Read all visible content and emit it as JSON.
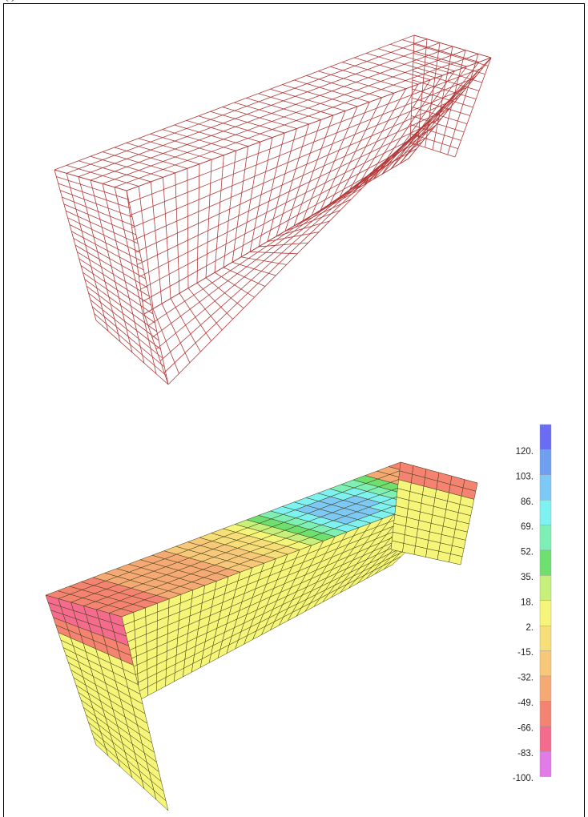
{
  "caption_fragment": "(                                                             )",
  "colors": {
    "mesh_line": "#b03a3a",
    "contour_edge": "#3a3a10"
  },
  "legend": {
    "labels": [
      "120.",
      "103.",
      "86.",
      "69.",
      "52.",
      "35.",
      "18.",
      "2.",
      "-15.",
      "-32.",
      "-49.",
      "-66.",
      "-83.",
      "-100."
    ],
    "bands": [
      "#6b6cf4",
      "#6fa0f0",
      "#7ec8f5",
      "#7ef1f1",
      "#7ef0b6",
      "#6fe06f",
      "#c6f07a",
      "#f5f57a",
      "#f7de79",
      "#f7c87a",
      "#f5a975",
      "#f58372",
      "#f56b8e",
      "#e27be8"
    ]
  }
}
